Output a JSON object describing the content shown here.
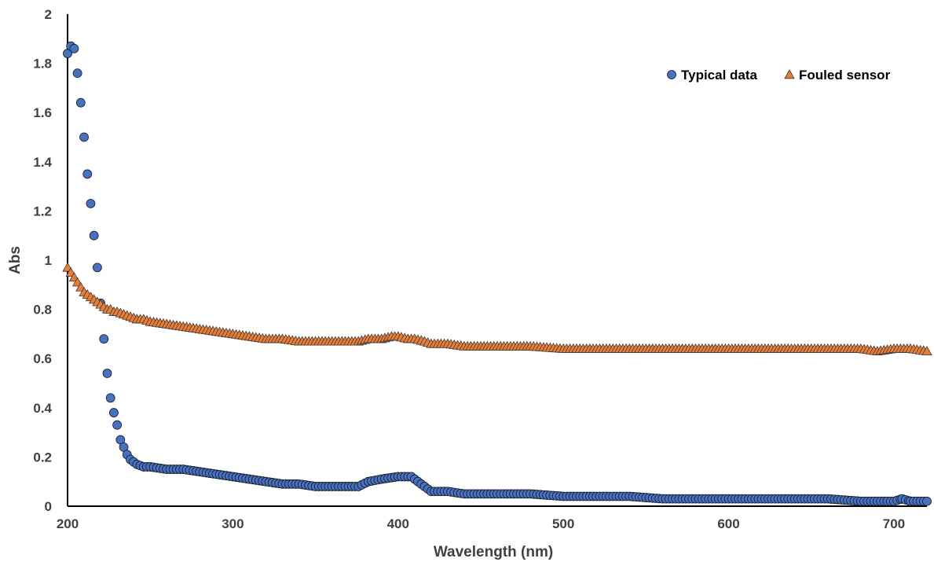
{
  "chart_data": {
    "type": "scatter",
    "xlabel": "Wavelength (nm)",
    "ylabel": "Abs",
    "xlim": [
      200,
      720
    ],
    "ylim": [
      0,
      2
    ],
    "xticks": [
      200,
      300,
      400,
      500,
      600,
      700
    ],
    "xtick_labels": [
      "200",
      "300",
      "400",
      "500",
      "600",
      "700"
    ],
    "yticks": [
      0,
      0.2,
      0.4,
      0.6,
      0.8,
      1,
      1.2,
      1.4,
      1.6,
      1.8,
      2
    ],
    "ytick_labels": [
      "0",
      "0.2",
      "0.4",
      "0.6",
      "0.8",
      "1",
      "1.2",
      "1.4",
      "1.6",
      "1.8",
      "2"
    ],
    "grid": false,
    "legend_position": "top-right",
    "series": [
      {
        "name": "Typical data",
        "marker": "circle",
        "color": "#4472C4",
        "x": [
          200,
          202,
          204,
          206,
          208,
          210,
          212,
          214,
          216,
          218,
          222,
          224,
          226,
          228,
          230,
          232,
          234,
          236,
          238,
          240,
          242,
          246,
          250,
          260,
          270,
          280,
          290,
          300,
          310,
          320,
          330,
          340,
          350,
          360,
          370,
          376,
          382,
          390,
          400,
          408,
          412,
          416,
          420,
          430,
          440,
          460,
          480,
          500,
          520,
          540,
          560,
          580,
          600,
          620,
          640,
          660,
          680,
          700,
          705,
          710,
          720
        ],
        "y": [
          1.84,
          1.87,
          1.86,
          1.76,
          1.64,
          1.5,
          1.35,
          1.23,
          1.1,
          0.97,
          0.68,
          0.54,
          0.44,
          0.38,
          0.33,
          0.27,
          0.24,
          0.21,
          0.19,
          0.18,
          0.17,
          0.16,
          0.16,
          0.15,
          0.15,
          0.14,
          0.13,
          0.12,
          0.11,
          0.1,
          0.09,
          0.09,
          0.08,
          0.08,
          0.08,
          0.08,
          0.1,
          0.11,
          0.12,
          0.12,
          0.1,
          0.08,
          0.06,
          0.06,
          0.05,
          0.05,
          0.05,
          0.04,
          0.04,
          0.04,
          0.03,
          0.03,
          0.03,
          0.03,
          0.03,
          0.03,
          0.02,
          0.02,
          0.03,
          0.02,
          0.02
        ]
      },
      {
        "name": "Fouled sensor",
        "marker": "triangle",
        "color": "#ED7D31",
        "x": [
          200,
          202,
          204,
          206,
          208,
          210,
          212,
          214,
          216,
          218,
          220,
          222,
          224,
          226,
          228,
          230,
          234,
          238,
          242,
          246,
          250,
          260,
          270,
          280,
          290,
          300,
          310,
          320,
          330,
          340,
          350,
          360,
          370,
          376,
          382,
          390,
          396,
          400,
          406,
          410,
          416,
          420,
          430,
          440,
          460,
          480,
          500,
          520,
          540,
          560,
          580,
          600,
          620,
          640,
          660,
          680,
          690,
          700,
          710,
          720
        ],
        "y": [
          0.97,
          0.95,
          0.93,
          0.91,
          0.89,
          0.87,
          0.86,
          0.85,
          0.84,
          0.83,
          0.82,
          0.81,
          0.8,
          0.8,
          0.79,
          0.79,
          0.78,
          0.77,
          0.76,
          0.76,
          0.75,
          0.74,
          0.73,
          0.72,
          0.71,
          0.7,
          0.69,
          0.68,
          0.68,
          0.67,
          0.67,
          0.67,
          0.67,
          0.67,
          0.68,
          0.68,
          0.69,
          0.69,
          0.68,
          0.68,
          0.67,
          0.66,
          0.66,
          0.65,
          0.65,
          0.65,
          0.64,
          0.64,
          0.64,
          0.64,
          0.64,
          0.64,
          0.64,
          0.64,
          0.64,
          0.64,
          0.63,
          0.64,
          0.64,
          0.63
        ]
      }
    ]
  }
}
